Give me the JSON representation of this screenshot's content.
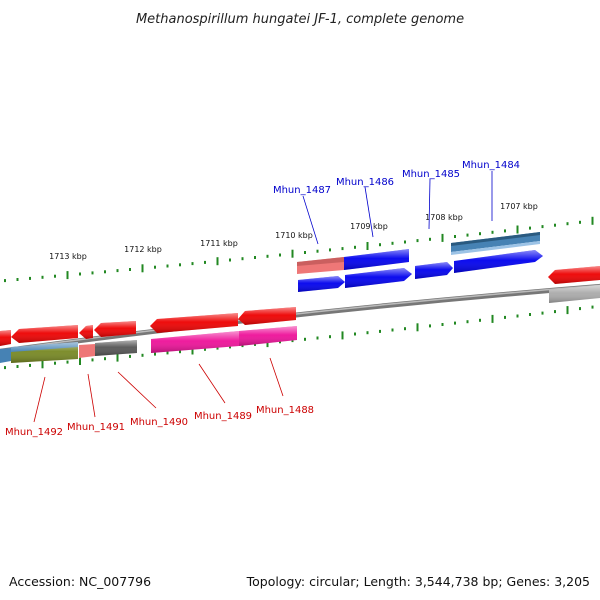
{
  "title": "Methanospirillum hungatei JF-1, complete genome",
  "footer": {
    "accession": "Accession: NC_007796",
    "topology": "Topology: circular; Length: 3,544,738 bp; Genes: 3,205"
  },
  "colors": {
    "forward": "#0000ee",
    "reverse": "#ee0000",
    "pink": "#ee1199",
    "steel": "#4682b4",
    "salmon": "#ee7777",
    "gray": "#555555",
    "olive": "#778822",
    "lightgray": "#aaaaaa",
    "tick": "#228822",
    "backbone": "#888888"
  },
  "ticks": [
    "1713 kbp",
    "1712 kbp",
    "1711 kbp",
    "1710 kbp",
    "1709 kbp",
    "1708 kbp",
    "1707 kbp"
  ],
  "labels_top": [
    "Mhun_1487",
    "Mhun_1486",
    "Mhun_1485",
    "Mhun_1484"
  ],
  "labels_bottom": [
    "Mhun_1492",
    "Mhun_1491",
    "Mhun_1490",
    "Mhun_1489",
    "Mhun_1488"
  ]
}
